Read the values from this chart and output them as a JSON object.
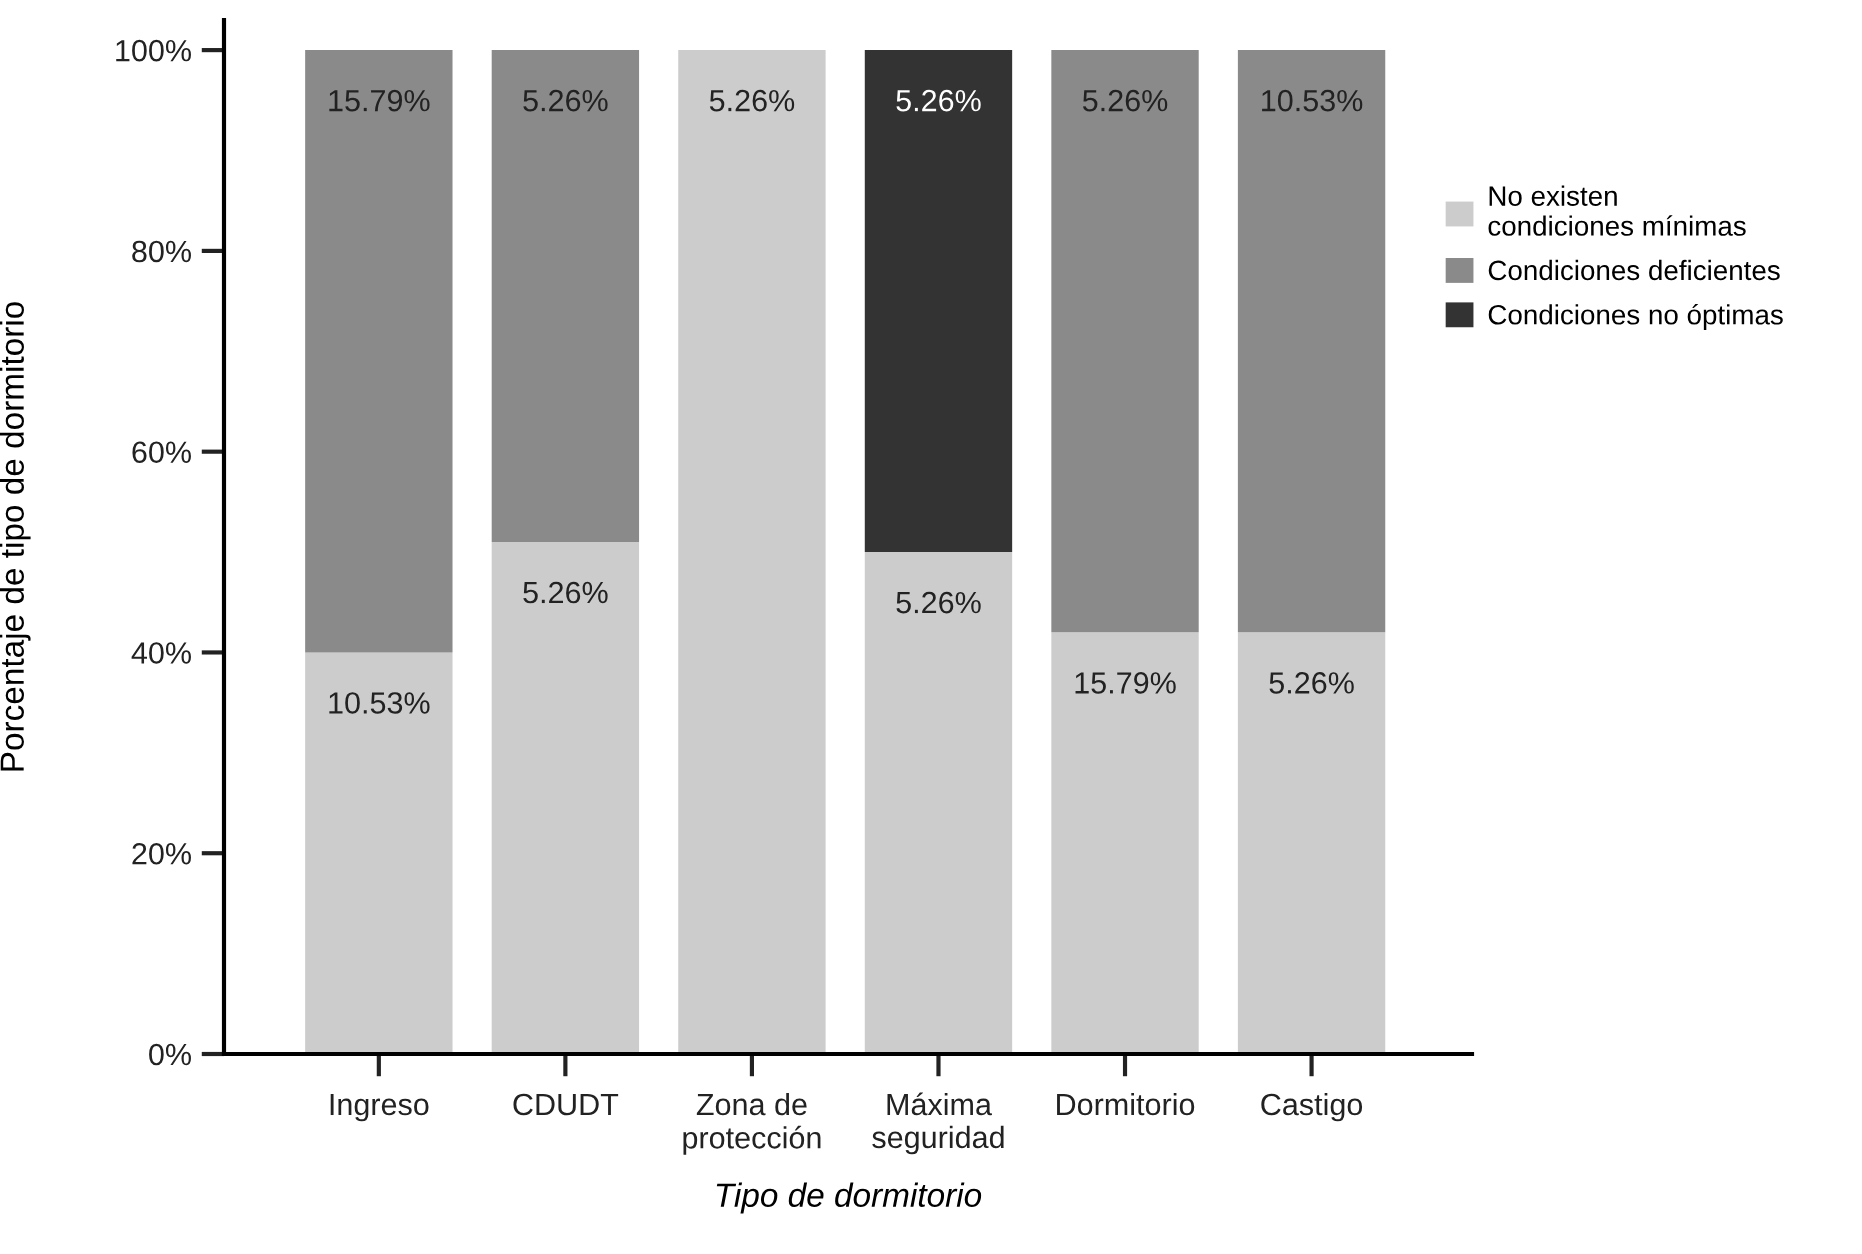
{
  "chart_data": {
    "type": "bar",
    "stacked": true,
    "xlabel": "Tipo de dormitorio",
    "ylabel": "Porcentaje de tipo de dormitorio",
    "categories": [
      "Ingreso",
      "CDUDT",
      "Zona de\nprotección",
      "Máxima\nseguridad",
      "Dormitorio",
      "Castigo"
    ],
    "series": [
      {
        "name": "No existen\ncondiciones mínimas",
        "color": "#cccccc",
        "values": [
          40,
          51,
          100,
          50,
          42,
          42
        ]
      },
      {
        "name": "Condiciones deficientes",
        "color": "#8a8a8a",
        "values": [
          60,
          49,
          0,
          0,
          58,
          58
        ]
      },
      {
        "name": "Condiciones no óptimas",
        "color": "#333333",
        "values": [
          0,
          0,
          0,
          50,
          0,
          0
        ]
      }
    ],
    "annotations": [
      {
        "text": "10.53%",
        "x": "Ingreso",
        "y": 40
      },
      {
        "text": "15.79%",
        "x": "Ingreso",
        "y": 100
      },
      {
        "text": "5.26%",
        "x": "CDUDT",
        "y": 51
      },
      {
        "text": "5.26%",
        "x": "CDUDT",
        "y": 100
      },
      {
        "text": "5.26%",
        "x": "Zona de\nprotección",
        "y": 100
      },
      {
        "text": "5.26%",
        "x": "Máxima\nseguridad",
        "y": 50
      },
      {
        "text": "5.26%",
        "x": "Máxima\nseguridad",
        "y": 100
      },
      {
        "text": "15.79%",
        "x": "Dormitorio",
        "y": 42
      },
      {
        "text": "5.26%",
        "x": "Dormitorio",
        "y": 100
      },
      {
        "text": "5.26%",
        "x": "Castigo",
        "y": 42
      },
      {
        "text": "10.53%",
        "x": "Castigo",
        "y": 100
      }
    ],
    "ylim": [
      0,
      103
    ],
    "yticks": [
      {
        "value": 0,
        "label": "0%"
      },
      {
        "value": 20,
        "label": "20%"
      },
      {
        "value": 40,
        "label": "40%"
      },
      {
        "value": 60,
        "label": "60%"
      },
      {
        "value": 80,
        "label": "80%"
      },
      {
        "value": 100,
        "label": "100%"
      }
    ],
    "grid": false,
    "legend": "right"
  }
}
